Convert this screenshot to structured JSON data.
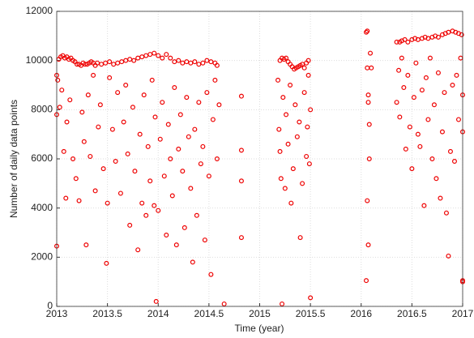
{
  "chart_data": {
    "type": "scatter",
    "xlabel": "Time (year)",
    "ylabel": "Number of daily data points",
    "color": "#ee0000",
    "grid": true,
    "xlim": [
      2013,
      2017
    ],
    "xticks": [
      2013,
      2013.5,
      2014,
      2014.5,
      2015,
      2015.5,
      2016,
      2016.5,
      2017
    ],
    "ylim": [
      0,
      12000
    ],
    "yticks": [
      0,
      2000,
      4000,
      6000,
      8000,
      10000,
      12000
    ],
    "x": [
      2013.0,
      2013.02,
      2013.04,
      2013.06,
      2013.08,
      2013.1,
      2013.12,
      2013.14,
      2013.16,
      2013.18,
      2013.2,
      2013.22,
      2013.24,
      2013.26,
      2013.28,
      2013.3,
      2013.32,
      2013.34,
      2013.36,
      2013.38,
      2013.4,
      2013.44,
      2013.48,
      2013.52,
      2013.56,
      2013.6,
      2013.64,
      2013.68,
      2013.72,
      2013.76,
      2013.8,
      2013.84,
      2013.88,
      2013.92,
      2013.96,
      2014.0,
      2014.04,
      2014.08,
      2014.12,
      2014.16,
      2014.2,
      2014.24,
      2014.28,
      2014.32,
      2014.36,
      2014.4,
      2014.44,
      2014.48,
      2014.52,
      2014.56,
      2014.58,
      2013.0,
      2013.0,
      2013.01,
      2013.03,
      2013.05,
      2013.07,
      2013.09,
      2013.1,
      2013.13,
      2013.16,
      2013.19,
      2013.22,
      2013.25,
      2013.27,
      2013.29,
      2013.31,
      2013.33,
      2013.36,
      2013.38,
      2013.41,
      2013.43,
      2013.46,
      2013.49,
      2013.5,
      2013.52,
      2013.55,
      2013.58,
      2013.6,
      2013.63,
      2013.66,
      2013.68,
      2013.7,
      2013.72,
      2013.75,
      2013.77,
      2013.8,
      2013.82,
      2013.84,
      2013.86,
      2013.88,
      2013.9,
      2013.92,
      2013.94,
      2013.96,
      2013.97,
      2013.98,
      2014.0,
      2014.02,
      2014.04,
      2014.06,
      2014.08,
      2014.1,
      2014.12,
      2014.14,
      2014.16,
      2014.18,
      2014.2,
      2014.22,
      2014.24,
      2014.26,
      2014.28,
      2014.3,
      2014.32,
      2014.34,
      2014.36,
      2014.38,
      2014.4,
      2014.42,
      2014.44,
      2014.46,
      2014.48,
      2014.5,
      2014.52,
      2014.54,
      2014.56,
      2014.58,
      2014.6,
      2014.65,
      2014.82,
      2014.82,
      2014.82,
      2014.82,
      2015.2,
      2015.22,
      2015.24,
      2015.26,
      2015.28,
      2015.3,
      2015.32,
      2015.34,
      2015.36,
      2015.38,
      2015.4,
      2015.42,
      2015.44,
      2015.46,
      2015.48,
      2015.18,
      2015.19,
      2015.2,
      2015.21,
      2015.22,
      2015.23,
      2015.25,
      2015.26,
      2015.28,
      2015.3,
      2015.31,
      2015.33,
      2015.35,
      2015.37,
      2015.39,
      2015.4,
      2015.42,
      2015.44,
      2015.46,
      2015.47,
      2015.48,
      2015.49,
      2015.5,
      2015.5,
      2016.05,
      2016.06,
      2016.06,
      2016.07,
      2016.07,
      2016.08,
      2016.08,
      2016.06,
      2016.07,
      2016.05,
      2016.09,
      2016.1,
      2016.35,
      2016.38,
      2016.4,
      2016.43,
      2016.46,
      2016.5,
      2016.53,
      2016.56,
      2016.6,
      2016.63,
      2016.66,
      2016.7,
      2016.73,
      2016.76,
      2016.8,
      2016.83,
      2016.86,
      2016.9,
      2016.93,
      2016.96,
      2016.99,
      2016.35,
      2016.37,
      2016.38,
      2016.4,
      2016.42,
      2016.44,
      2016.46,
      2016.48,
      2016.5,
      2016.52,
      2016.54,
      2016.56,
      2016.58,
      2016.6,
      2016.62,
      2016.64,
      2016.66,
      2016.68,
      2016.7,
      2016.72,
      2016.74,
      2016.76,
      2016.78,
      2016.8,
      2016.82,
      2016.84,
      2016.86,
      2016.88,
      2016.9,
      2016.92,
      2016.94,
      2016.96,
      2016.98,
      2017.0,
      2017.0,
      2017.0,
      2017.0
    ],
    "y": [
      9400,
      10050,
      10150,
      10200,
      10100,
      10150,
      10050,
      10100,
      10000,
      9950,
      9850,
      9850,
      9800,
      9900,
      9850,
      9850,
      9900,
      9950,
      9900,
      9800,
      9900,
      9850,
      9900,
      9950,
      9850,
      9900,
      9950,
      10000,
      10050,
      10000,
      10100,
      10150,
      10200,
      10250,
      10300,
      10200,
      10100,
      10250,
      10100,
      9950,
      10000,
      9900,
      9950,
      9900,
      9950,
      9850,
      9900,
      10000,
      9950,
      9900,
      9800,
      7800,
      2450,
      9200,
      8100,
      8800,
      6300,
      4400,
      7500,
      8400,
      6000,
      5200,
      4300,
      7900,
      6700,
      2500,
      8600,
      6100,
      9400,
      4700,
      7300,
      8200,
      5600,
      1750,
      4200,
      9300,
      7200,
      5900,
      8700,
      4600,
      7500,
      9000,
      6200,
      3300,
      8100,
      5500,
      2300,
      7000,
      4200,
      8600,
      3700,
      6500,
      5100,
      9200,
      4100,
      7700,
      200,
      3900,
      6800,
      8300,
      5300,
      2900,
      7400,
      6000,
      4500,
      8900,
      2500,
      6400,
      7800,
      5500,
      3200,
      8500,
      6900,
      4800,
      1800,
      7200,
      3700,
      8300,
      5800,
      6500,
      2700,
      8700,
      5300,
      1300,
      7600,
      9200,
      6000,
      8200,
      100,
      8550,
      6350,
      5100,
      2800,
      10000,
      10100,
      10050,
      10100,
      9950,
      9850,
      9750,
      9650,
      9700,
      9750,
      9800,
      9850,
      9700,
      9900,
      10000,
      9200,
      7200,
      6300,
      5200,
      100,
      8500,
      4800,
      7800,
      6600,
      9000,
      4200,
      5600,
      8200,
      6900,
      7500,
      2800,
      5000,
      8700,
      6100,
      7300,
      9400,
      5800,
      8000,
      350,
      11150,
      11200,
      9700,
      8600,
      8300,
      7400,
      6000,
      4300,
      2500,
      1050,
      10300,
      9700,
      10750,
      10750,
      10800,
      10850,
      10750,
      10850,
      10900,
      10850,
      10900,
      10950,
      10900,
      10950,
      11000,
      10950,
      11050,
      11100,
      11150,
      11200,
      11150,
      11100,
      11050,
      8300,
      9600,
      7700,
      10100,
      8900,
      6400,
      9400,
      7300,
      5600,
      8500,
      9900,
      7000,
      6500,
      8800,
      4100,
      9300,
      7600,
      10100,
      6000,
      8200,
      5200,
      9500,
      4400,
      7100,
      8700,
      3800,
      2050,
      6300,
      9000,
      5900,
      9400,
      7600,
      10100,
      8600,
      1050,
      1000,
      7100
    ]
  }
}
